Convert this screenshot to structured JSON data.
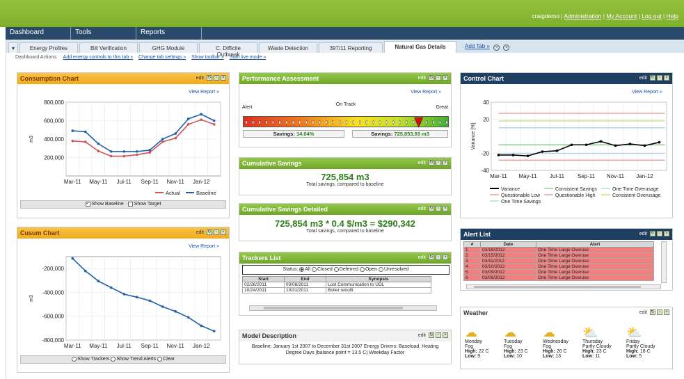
{
  "header": {
    "user": "craigdemo",
    "links": [
      "Administration",
      "My Account",
      "Log out",
      "Help"
    ]
  },
  "mainnav": [
    "Dashboard",
    "Tools",
    "Reports"
  ],
  "tabs": [
    "▾",
    "Energy Profiles",
    "Bill Verification",
    "GHG Module",
    "C. Difficile Outbreak",
    "Waste Detection",
    "397/11 Reporting",
    "Natural Gas Details"
  ],
  "tabextra": {
    "add": "Add Tab »",
    "prev": "«",
    "next": "»"
  },
  "actions": {
    "label": "Dashboard Actions:",
    "links": [
      "Add energy controls to this tab »",
      "Change tab settings »",
      "Show toolbar »",
      "Start live mode »"
    ]
  },
  "controls": {
    "edit": "edit",
    "view_report": "View Report »"
  },
  "consumption": {
    "title": "Consumption Chart",
    "ylabel": "m3",
    "yticks": [
      "800,000",
      "600,000",
      "400,000",
      "200,000"
    ],
    "xticks": [
      "Mar-11",
      "May-11",
      "Jul-11",
      "Sep-11",
      "Nov-11",
      "Jan-12"
    ],
    "legend": [
      "Actual",
      "Baseline"
    ],
    "options": [
      "Show Baseline",
      "Show Target"
    ],
    "colors": {
      "actual": "#cc5555",
      "baseline": "#1f5fa8"
    }
  },
  "cusum": {
    "title": "Cusum Chart",
    "ylabel": "m3",
    "yticks": [
      "-200,000",
      "-400,000",
      "-600,000",
      "-800,000"
    ],
    "xticks": [
      "Mar-11",
      "May-11",
      "Jul-11",
      "Sep-11",
      "Nov-11",
      "Jan-12"
    ],
    "options": [
      "Show Trackers",
      "Show Trend Alerts",
      "Clear"
    ]
  },
  "performance": {
    "title": "Performance Assessment",
    "labels": {
      "left": "Alert",
      "mid": "On Track",
      "right": "Great"
    },
    "savings_pct_label": "Savings:",
    "savings_pct": "14.04%",
    "savings_val_label": "Savings:",
    "savings_val": "725,853.93 m3",
    "level": 0.86
  },
  "cumsav": {
    "title": "Cumulative Savings",
    "value": "725,854 m3",
    "sub": "Total savings, compared to baseline"
  },
  "cumsavd": {
    "title": "Cumulative Savings Detailed",
    "value": "725,854 m3 * 0.4 $/m3 = $290,342",
    "sub": "Total savings, compared to baseline"
  },
  "trackers": {
    "title": "Trackers List",
    "status_label": "Status:",
    "statuses": [
      "All",
      "Closed",
      "Deferred",
      "Open",
      "Unresolved"
    ],
    "columns": [
      "Start",
      "End",
      "Synopsis"
    ],
    "rows": [
      [
        "02/26/2011",
        "03/08/2011",
        "Lost Communication to UDL"
      ],
      [
        "10/24/2011",
        "10/31/2011",
        "Boiler retrofit"
      ]
    ]
  },
  "model": {
    "title": "Model Description",
    "text": "Baseline: January 1st 2007 to December 31st 2007 Energy Drivers: Baseload, Heating Degree Days (balance point = 13.5 C) Weekday Factor"
  },
  "control": {
    "title": "Control Chart",
    "ylabel": "Variance [%]",
    "yticks": [
      "40",
      "20",
      "-20",
      "-40"
    ],
    "xticks": [
      "Mar-11",
      "May-11",
      "Jul-11",
      "Sep-11",
      "Nov-11",
      "Jan-12"
    ],
    "legend": [
      "Variance",
      "Consistent Savings",
      "One Time Overusage",
      "Questionable Low",
      "Questionable High",
      "Consistent Overusage",
      "One Time Savings"
    ]
  },
  "alerts": {
    "title": "Alert List",
    "columns": [
      "#",
      "Date",
      "Alert"
    ],
    "rows": [
      [
        "1",
        "03/16/2012",
        "One Time Large Overuse"
      ],
      [
        "2",
        "03/15/2012",
        "One Time Large Overuse"
      ],
      [
        "3",
        "03/11/2012",
        "One Time Large Overuse"
      ],
      [
        "4",
        "03/10/2012",
        "One Time Large Overuse"
      ],
      [
        "5",
        "03/09/2012",
        "One Time Large Overuse"
      ],
      [
        "6",
        "03/06/2012",
        "One Time Large Overuse"
      ]
    ]
  },
  "weather": {
    "title": "Weather",
    "days": [
      {
        "day": "Monday",
        "cond": "Fog",
        "high": "22 C",
        "low": "9"
      },
      {
        "day": "Tuesday",
        "cond": "Fog",
        "high": "23 C",
        "low": "10"
      },
      {
        "day": "Wednesday",
        "cond": "Fog",
        "high": "26 C",
        "low": "13"
      },
      {
        "day": "Thursday",
        "cond": "Partly Cloudy",
        "high": "23 C",
        "low": "11"
      },
      {
        "day": "Friday",
        "cond": "Partly Cloudy",
        "high": "18 C",
        "low": "5"
      }
    ],
    "high_label": "High:",
    "low_label": "Low:"
  },
  "chart_data": [
    {
      "type": "line",
      "title": "Consumption Chart",
      "ylabel": "m3",
      "ylim": [
        0,
        800000
      ],
      "x": [
        "Mar-11",
        "Apr-11",
        "May-11",
        "Jun-11",
        "Jul-11",
        "Aug-11",
        "Sep-11",
        "Oct-11",
        "Nov-11",
        "Dec-11",
        "Jan-12",
        "Feb-12"
      ],
      "series": [
        {
          "name": "Actual",
          "values": [
            380000,
            370000,
            270000,
            215000,
            215000,
            230000,
            255000,
            370000,
            410000,
            560000,
            610000,
            560000
          ]
        },
        {
          "name": "Baseline",
          "values": [
            490000,
            480000,
            350000,
            265000,
            265000,
            265000,
            280000,
            400000,
            460000,
            620000,
            670000,
            600000
          ]
        }
      ]
    },
    {
      "type": "line",
      "title": "Cusum Chart",
      "ylabel": "m3",
      "ylim": [
        -800000,
        -100000
      ],
      "x": [
        "Mar-11",
        "Apr-11",
        "May-11",
        "Jun-11",
        "Jul-11",
        "Aug-11",
        "Sep-11",
        "Oct-11",
        "Nov-11",
        "Dec-11",
        "Jan-12",
        "Feb-12"
      ],
      "series": [
        {
          "name": "",
          "values": [
            -115000,
            -220000,
            -305000,
            -360000,
            -415000,
            -440000,
            -470000,
            -520000,
            -560000,
            -610000,
            -680000,
            -725000
          ]
        }
      ]
    },
    {
      "type": "line",
      "title": "Control Chart",
      "ylabel": "Variance [%]",
      "ylim": [
        -40,
        40
      ],
      "x": [
        "Mar-11",
        "Apr-11",
        "May-11",
        "Jun-11",
        "Jul-11",
        "Aug-11",
        "Sep-11",
        "Oct-11",
        "Nov-11",
        "Dec-11",
        "Jan-12",
        "Feb-12"
      ],
      "series": [
        {
          "name": "Variance",
          "values": [
            -22,
            -22,
            -23,
            -18,
            -17,
            -10,
            -10,
            -6,
            -11,
            -9,
            -11,
            -7
          ]
        }
      ],
      "thresholds": [
        {
          "name": "Questionable High",
          "value": 27,
          "color": "#e89a9a"
        },
        {
          "name": "Consistent Overusage",
          "value": 18,
          "color": "#c8e07a"
        },
        {
          "name": "One Time Overusage",
          "value": 10,
          "color": "#b9d2e2"
        },
        {
          "name": "Consistent Savings",
          "value": -10,
          "color": "#8cd08c"
        },
        {
          "name": "One Time Savings",
          "value": -20,
          "color": "#b9d2e2"
        },
        {
          "name": "Questionable Low",
          "value": -28,
          "color": "#e89a9a"
        }
      ]
    }
  ]
}
